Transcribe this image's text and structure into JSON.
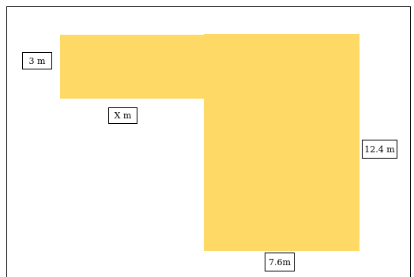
{
  "diagram": {
    "fill_color": "#fed966",
    "border_color": "#000000",
    "labels": {
      "top_width": "3 m",
      "inner_top": "X m",
      "height": "12.4 m",
      "bottom_width": "7.6m"
    }
  }
}
